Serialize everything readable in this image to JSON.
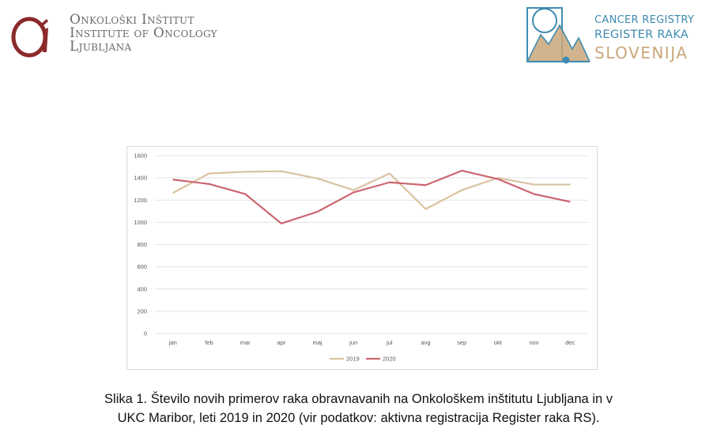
{
  "header": {
    "oi_logo": {
      "line1": "Onkološki Inštitut",
      "line2": "Institute of Oncology",
      "line3": "Ljubljana"
    },
    "cr_logo": {
      "line1": "CANCER REGISTRY",
      "line2": "REGISTER RAKA",
      "line3": "SLOVENIJA"
    }
  },
  "colors": {
    "series_2019": "#d9c3a0",
    "series_2020": "#cc6670",
    "grid": "#e3e3e3",
    "oi_red": "#8b2a2a",
    "cr_blue": "#3f8bb0",
    "cr_tan": "#c9a77a"
  },
  "chart_data": {
    "type": "line",
    "categories": [
      "jan",
      "feb",
      "mar",
      "apr",
      "maj",
      "jun",
      "jul",
      "avg",
      "sep",
      "okt",
      "nov",
      "dec"
    ],
    "y_ticks": [
      "0",
      "200",
      "400",
      "600",
      "800",
      "1000",
      "1200",
      "1400",
      "1600"
    ],
    "ylim": [
      0,
      1600
    ],
    "grid": true,
    "legend_position": "bottom",
    "series": [
      {
        "name": "2019",
        "values": [
          1265,
          1440,
          1455,
          1460,
          1395,
          1290,
          1440,
          1120,
          1290,
          1400,
          1340,
          1340
        ]
      },
      {
        "name": "2020",
        "values": [
          1385,
          1345,
          1255,
          990,
          1095,
          1270,
          1360,
          1335,
          1465,
          1390,
          1255,
          1185
        ]
      }
    ]
  },
  "caption": {
    "line1": "Slika 1. Število novih primerov raka obravnavanih na Onkološkem inštitutu Ljubljana in v",
    "line2": "UKC Maribor, leti 2019 in 2020 (vir podatkov: aktivna registracija Register raka RS)."
  }
}
